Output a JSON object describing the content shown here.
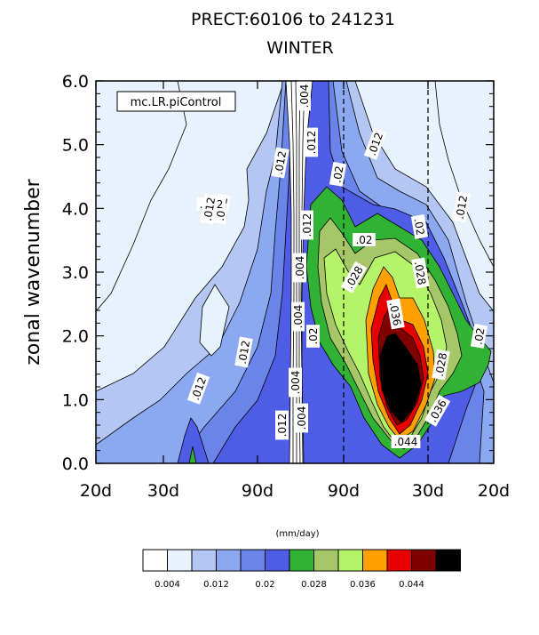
{
  "chart_data": {
    "type": "heatmap",
    "title": "PRECT:60106 to 241231",
    "subtitle": "WINTER",
    "ylabel": "zonal wavenumber",
    "units_label": "(mm/day)",
    "legend_box_label": "mc.LR.piControl",
    "ylim": [
      0,
      6
    ],
    "y_ticks": [
      "0.0",
      "1.0",
      "2.0",
      "3.0",
      "4.0",
      "5.0",
      "6.0"
    ],
    "x_ticks": [
      "20d",
      "30d",
      "90d",
      "90d",
      "30d",
      "20d"
    ],
    "grid": false,
    "colorbar": {
      "placement": "bottom",
      "colors": [
        "#ffffff",
        "#e8f2fd",
        "#b4c7f4",
        "#8ca8f0",
        "#6a84ea",
        "#4f5ce6",
        "#30b334",
        "#a6c768",
        "#b5f468",
        "#ff9f00",
        "#e80000",
        "#800000",
        "#000000"
      ],
      "tick_labels": [
        "0.004",
        "0.012",
        "0.02",
        "0.028",
        "0.036",
        "0.044"
      ]
    },
    "contour_labels": [
      ".004",
      ".012",
      ".012",
      ".004",
      ".012",
      ".02",
      ".012",
      ".012",
      ".012",
      ".02",
      ".02",
      ".004",
      ".028",
      ".028",
      ".02",
      ".012",
      ".004",
      ".036",
      ".012",
      ".004",
      ".02",
      ".028",
      ".012",
      ".012",
      ".012",
      ".036",
      ".044"
    ]
  }
}
